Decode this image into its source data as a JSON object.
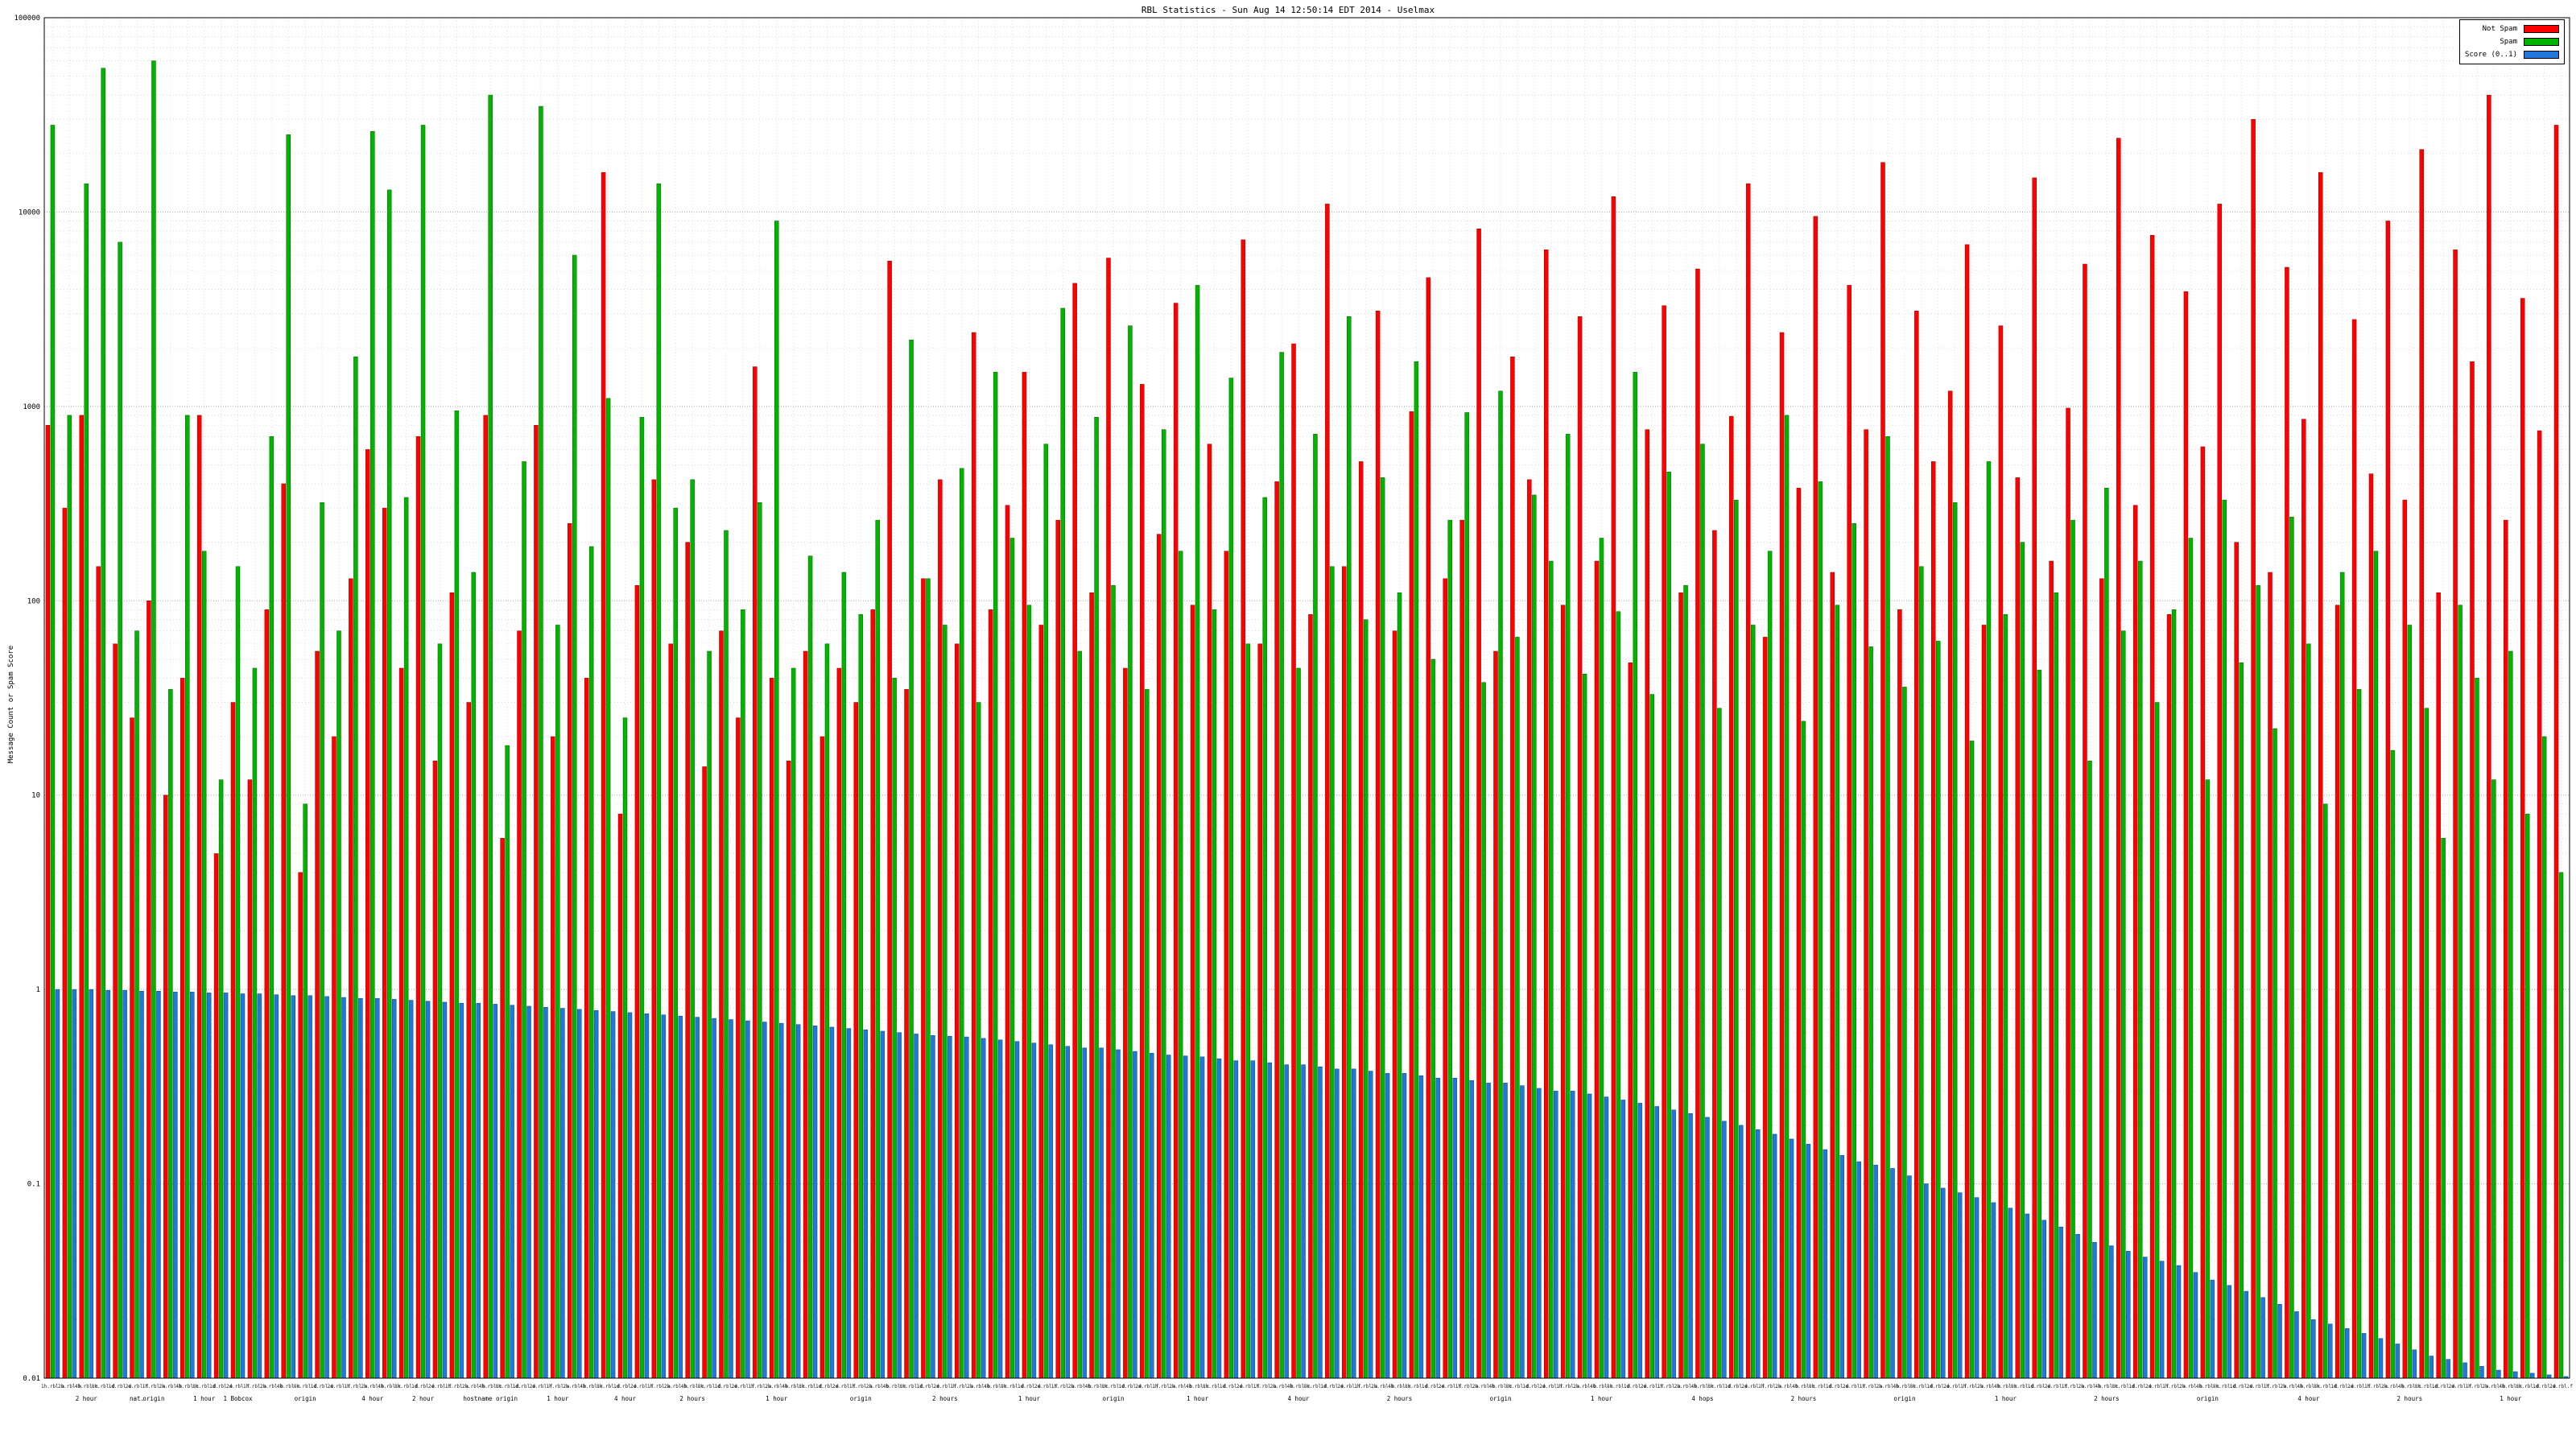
{
  "title": "RBL Statistics - Sun Aug 14 12:50:14 EDT 2014 - Uselmax",
  "legend": [
    {
      "label": "Not Spam",
      "color": "#ff0000"
    },
    {
      "label": "Spam",
      "color": "#00b400"
    },
    {
      "label": "Score (0..1)",
      "color": "#2277dd"
    }
  ],
  "chart_data": {
    "type": "bar",
    "scale": "log",
    "title": "RBL Statistics - Sun Aug 14 12:50:14 EDT 2014 - Uselmax",
    "xlabel": "",
    "ylabel": "Message Count or Spam Score",
    "ylim": [
      0.01,
      100000
    ],
    "yticks": [
      "0.01",
      "0.1",
      "1",
      "10",
      "100",
      "1000",
      "10000",
      "100000"
    ],
    "grid": true,
    "legend_position": "top-right",
    "x_tick_patterns": [
      "1h.rbl.a",
      "2h.rbl.b",
      "4h.rbl.c",
      "8h.rbl.d",
      "1d.rbl.e",
      "2d.rbl.f"
    ],
    "x_sub_labels": [
      {
        "i": 2,
        "t": "2 hour"
      },
      {
        "i": 5,
        "t": "nat."
      },
      {
        "i": 6,
        "t": "origin"
      },
      {
        "i": 9,
        "t": "1 hour"
      },
      {
        "i": 11,
        "t": "1 Bobcox"
      },
      {
        "i": 15,
        "t": "origin"
      },
      {
        "i": 19,
        "t": "4 hour"
      },
      {
        "i": 22,
        "t": "2 hour"
      },
      {
        "i": 26,
        "t": "hostname origin"
      },
      {
        "i": 30,
        "t": "1 hour"
      },
      {
        "i": 34,
        "t": "4 hour"
      },
      {
        "i": 38,
        "t": "2 hours"
      },
      {
        "i": 43,
        "t": "1 hour"
      },
      {
        "i": 48,
        "t": "origin"
      },
      {
        "i": 53,
        "t": "2 hours"
      },
      {
        "i": 58,
        "t": "1 hour"
      },
      {
        "i": 63,
        "t": "origin"
      },
      {
        "i": 68,
        "t": "1 hour"
      },
      {
        "i": 74,
        "t": "4 hour"
      },
      {
        "i": 80,
        "t": "2 hours"
      },
      {
        "i": 86,
        "t": "origin"
      },
      {
        "i": 92,
        "t": "1 hour"
      },
      {
        "i": 98,
        "t": "4 hops"
      },
      {
        "i": 104,
        "t": "2 hours"
      },
      {
        "i": 110,
        "t": "origin"
      },
      {
        "i": 116,
        "t": "1 hour"
      },
      {
        "i": 122,
        "t": "2 hours"
      },
      {
        "i": 128,
        "t": "origin"
      },
      {
        "i": 134,
        "t": "4 hour"
      },
      {
        "i": 140,
        "t": "2 hours"
      },
      {
        "i": 146,
        "t": "1 hour"
      }
    ],
    "series": [
      {
        "name": "Not Spam",
        "color": "#ff0000",
        "stroke": "#990000",
        "values": [
          800,
          300,
          900,
          150,
          60,
          25,
          100,
          10,
          40,
          900,
          5,
          30,
          12,
          90,
          400,
          4,
          55,
          20,
          130,
          600,
          300,
          45,
          700,
          15,
          110,
          30,
          900,
          6,
          70,
          800,
          20,
          250,
          40,
          16000,
          8,
          120,
          420,
          60,
          200,
          14,
          70,
          25,
          1600,
          40,
          15,
          55,
          20,
          45,
          30,
          90,
          5600,
          35,
          130,
          420,
          60,
          2400,
          90,
          310,
          1500,
          75,
          260,
          4300,
          110,
          5800,
          45,
          1300,
          220,
          3400,
          95,
          640,
          180,
          7200,
          60,
          410,
          2100,
          85,
          11000,
          150,
          520,
          3100,
          70,
          940,
          4600,
          130,
          260,
          8200,
          55,
          1800,
          420,
          6400,
          95,
          2900,
          160,
          12000,
          48,
          760,
          3300,
          110,
          5100,
          230,
          890,
          14000,
          65,
          2400,
          380,
          9500,
          140,
          4200,
          760,
          18000,
          90,
          3100,
          520,
          1200,
          6800,
          75,
          2600,
          430,
          15000,
          160,
          980,
          5400,
          130,
          24000,
          310,
          7600,
          85,
          3900,
          620,
          11000,
          200,
          30000,
          140,
          5200,
          860,
          16000,
          95,
          2800,
          450,
          9000,
          330,
          21000,
          110,
          6400,
          1700,
          40000,
          260,
          3600,
          750,
          28000
        ]
      },
      {
        "name": "Spam",
        "color": "#00b400",
        "stroke": "#006600",
        "values": [
          28000,
          900,
          14000,
          55000,
          7000,
          70,
          60000,
          35,
          900,
          180,
          12,
          150,
          45,
          700,
          25000,
          9,
          320,
          70,
          1800,
          26000,
          13000,
          340,
          28000,
          60,
          950,
          140,
          40000,
          18,
          520,
          35000,
          75,
          6000,
          190,
          1100,
          25,
          880,
          14000,
          300,
          420,
          55,
          230,
          90,
          320,
          9000,
          45,
          170,
          60,
          140,
          85,
          260,
          40,
          2200,
          130,
          75,
          480,
          30,
          1500,
          210,
          95,
          640,
          3200,
          55,
          880,
          120,
          2600,
          35,
          760,
          180,
          4200,
          90,
          1400,
          60,
          340,
          1900,
          45,
          720,
          150,
          2900,
          80,
          430,
          110,
          1700,
          50,
          260,
          930,
          38,
          1200,
          65,
          350,
          160,
          720,
          42,
          210,
          88,
          1500,
          33,
          460,
          120,
          640,
          28,
          330,
          75,
          180,
          900,
          24,
          410,
          95,
          250,
          58,
          700,
          36,
          150,
          62,
          320,
          19,
          520,
          85,
          200,
          44,
          110,
          260,
          15,
          380,
          70,
          160,
          30,
          90,
          210,
          12,
          330,
          48,
          120,
          22,
          270,
          60,
          9,
          140,
          35,
          180,
          17,
          75,
          28,
          6,
          95,
          40,
          12,
          55,
          8,
          20,
          4
        ]
      },
      {
        "name": "Score (0..1)",
        "color": "#2277dd",
        "stroke": "#114477",
        "values": [
          1.0,
          1.0,
          1.0,
          0.99,
          0.99,
          0.98,
          0.98,
          0.97,
          0.97,
          0.96,
          0.96,
          0.95,
          0.95,
          0.94,
          0.93,
          0.93,
          0.92,
          0.91,
          0.9,
          0.9,
          0.89,
          0.88,
          0.87,
          0.86,
          0.85,
          0.85,
          0.84,
          0.83,
          0.82,
          0.81,
          0.8,
          0.79,
          0.78,
          0.77,
          0.76,
          0.75,
          0.74,
          0.73,
          0.72,
          0.71,
          0.7,
          0.69,
          0.68,
          0.67,
          0.66,
          0.65,
          0.64,
          0.63,
          0.62,
          0.61,
          0.6,
          0.59,
          0.58,
          0.575,
          0.57,
          0.56,
          0.55,
          0.54,
          0.53,
          0.52,
          0.51,
          0.5,
          0.5,
          0.49,
          0.48,
          0.47,
          0.46,
          0.455,
          0.45,
          0.44,
          0.43,
          0.43,
          0.42,
          0.41,
          0.41,
          0.4,
          0.39,
          0.39,
          0.38,
          0.37,
          0.37,
          0.36,
          0.35,
          0.35,
          0.34,
          0.33,
          0.33,
          0.32,
          0.31,
          0.3,
          0.3,
          0.29,
          0.28,
          0.27,
          0.26,
          0.25,
          0.24,
          0.23,
          0.22,
          0.21,
          0.2,
          0.19,
          0.18,
          0.17,
          0.16,
          0.15,
          0.14,
          0.13,
          0.125,
          0.12,
          0.11,
          0.1,
          0.095,
          0.09,
          0.085,
          0.08,
          0.075,
          0.07,
          0.065,
          0.06,
          0.055,
          0.05,
          0.048,
          0.045,
          0.042,
          0.04,
          0.038,
          0.035,
          0.032,
          0.03,
          0.028,
          0.026,
          0.024,
          0.022,
          0.02,
          0.019,
          0.018,
          0.017,
          0.016,
          0.015,
          0.014,
          0.013,
          0.0125,
          0.012,
          0.0115,
          0.011,
          0.0108,
          0.0106,
          0.0104,
          0.0102
        ]
      }
    ]
  }
}
